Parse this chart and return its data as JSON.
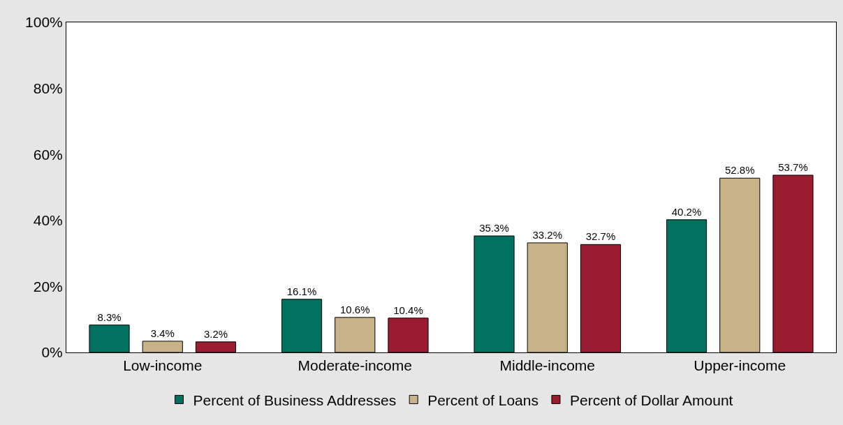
{
  "chart_data": {
    "type": "bar",
    "categories": [
      "Low-income",
      "Moderate-income",
      "Middle-income",
      "Upper-income"
    ],
    "series": [
      {
        "name": "Percent of Business Addresses",
        "color": "#00715f",
        "values": [
          8.3,
          16.1,
          35.3,
          40.2
        ]
      },
      {
        "name": "Percent of Loans",
        "color": "#c8b287",
        "values": [
          3.4,
          10.6,
          33.2,
          52.8
        ]
      },
      {
        "name": "Percent of Dollar Amount",
        "color": "#9b1b30",
        "values": [
          3.2,
          10.4,
          32.7,
          53.7
        ]
      }
    ],
    "ylim": [
      0,
      100
    ],
    "yticks": [
      {
        "value": 0,
        "label": "0%"
      },
      {
        "value": 20,
        "label": "20%"
      },
      {
        "value": 40,
        "label": "40%"
      },
      {
        "value": 60,
        "label": "60%"
      },
      {
        "value": 80,
        "label": "80%"
      },
      {
        "value": 100,
        "label": "100%"
      }
    ],
    "value_labels": [
      [
        "8.3%",
        "16.1%",
        "35.3%",
        "40.2%"
      ],
      [
        "3.4%",
        "10.6%",
        "33.2%",
        "52.8%"
      ],
      [
        "3.2%",
        "10.4%",
        "32.7%",
        "53.7%"
      ]
    ],
    "legend": "bottom"
  }
}
